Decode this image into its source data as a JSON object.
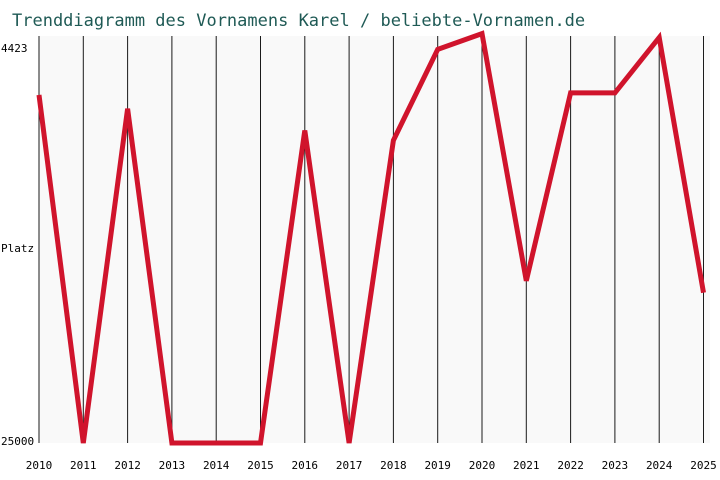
{
  "chart_data": {
    "type": "line",
    "title": "Trenddiagramm des Vornamens Karel / beliebte-Vornamen.de",
    "xlabel": "",
    "ylabel": "Platz",
    "y_axis_inverted": true,
    "ylim": [
      25000,
      4423
    ],
    "y_tick_labels": [
      "4423",
      "25000"
    ],
    "categories": [
      "2010",
      "2011",
      "2012",
      "2013",
      "2014",
      "2015",
      "2016",
      "2017",
      "2018",
      "2019",
      "2020",
      "2021",
      "2022",
      "2023",
      "2024",
      "2025"
    ],
    "series": [
      {
        "values": [
          7400,
          25000,
          8100,
          25000,
          25000,
          25000,
          9200,
          25000,
          9700,
          5100,
          4300,
          16800,
          7300,
          7300,
          4500,
          17400
        ]
      }
    ],
    "grid": "vertical lines at each year",
    "legend": "none"
  },
  "colors": {
    "title": "#1f5a55",
    "line": "#d0142c",
    "grid": "#1a1a1a",
    "text": "#000000",
    "background": "#ffffff",
    "plot_background": "#f9f9f9"
  }
}
